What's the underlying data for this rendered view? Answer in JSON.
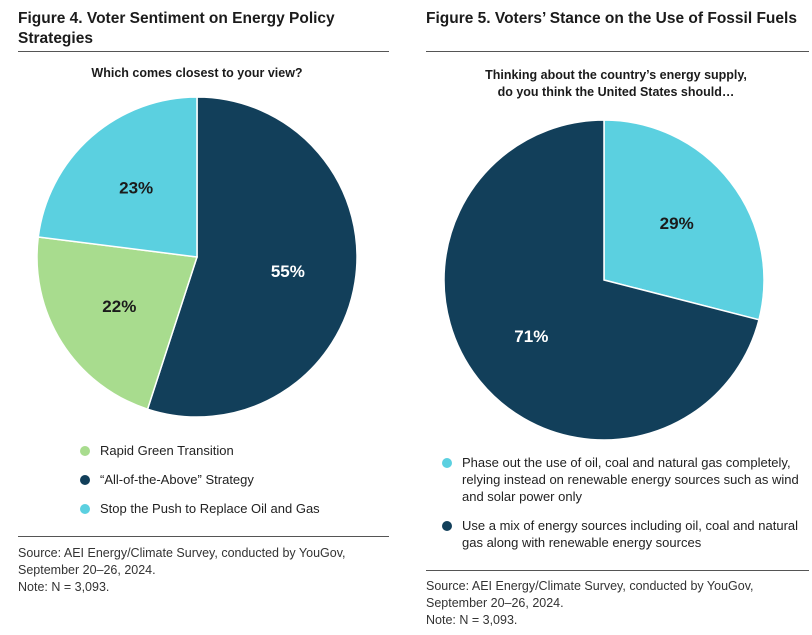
{
  "left": {
    "title": "Figure 4. Voter Sentiment on Energy Policy Strategies",
    "subtitle": "Which comes closest to your view?",
    "legend": [
      {
        "label": "Rapid Green Transition",
        "color": "#a8dc8e"
      },
      {
        "label": "“All-of-the-Above” Strategy",
        "color": "#123f5a"
      },
      {
        "label": "Stop the Push to Replace Oil and Gas",
        "color": "#5bd0e0"
      }
    ],
    "source_lines": [
      "Source: AEI Energy/Climate Survey, conducted by YouGov,",
      "September 20–26, 2024.",
      "Note: N = 3,093."
    ]
  },
  "right": {
    "title": "Figure 5. Voters’ Stance on the Use of Fossil Fuels",
    "subtitle_lines": [
      "Thinking about the country’s energy supply,",
      "do you think the United States should…"
    ],
    "legend": [
      {
        "label": "Phase out the use of oil, coal and natural gas completely, relying instead on renewable energy sources such as wind and solar power only",
        "color": "#5bd0e0"
      },
      {
        "label": "Use a mix of energy sources including oil, coal and natural gas along with renewable energy sources",
        "color": "#123f5a"
      }
    ],
    "source_lines": [
      "Source: AEI Energy/Climate Survey, conducted by YouGov,",
      "September 20–26, 2024.",
      "Note: N = 3,093."
    ]
  },
  "chart_data": [
    {
      "type": "pie",
      "title": "Figure 4. Voter Sentiment on Energy Policy Strategies",
      "subtitle": "Which comes closest to your view?",
      "categories": [
        "“All-of-the-Above” Strategy",
        "Rapid Green Transition",
        "Stop the Push to Replace Oil and Gas"
      ],
      "values": [
        55,
        22,
        23
      ],
      "labels": [
        "55%",
        "22%",
        "23%"
      ],
      "colors": [
        "#123f5a",
        "#a8dc8e",
        "#5bd0e0"
      ],
      "label_colors": [
        "#ffffff",
        "#1b1b1b",
        "#1b1b1b"
      ],
      "legend_position": "bottom"
    },
    {
      "type": "pie",
      "title": "Figure 5. Voters’ Stance on the Use of Fossil Fuels",
      "subtitle": "Thinking about the country’s energy supply, do you think the United States should…",
      "categories": [
        "Phase out the use of oil, coal and natural gas completely, relying instead on renewable energy sources such as wind and solar power only",
        "Use a mix of energy sources including oil, coal and natural gas along with renewable energy sources"
      ],
      "values": [
        29,
        71
      ],
      "labels": [
        "29%",
        "71%"
      ],
      "colors": [
        "#5bd0e0",
        "#123f5a"
      ],
      "label_colors": [
        "#1b1b1b",
        "#ffffff"
      ],
      "legend_position": "bottom"
    }
  ]
}
